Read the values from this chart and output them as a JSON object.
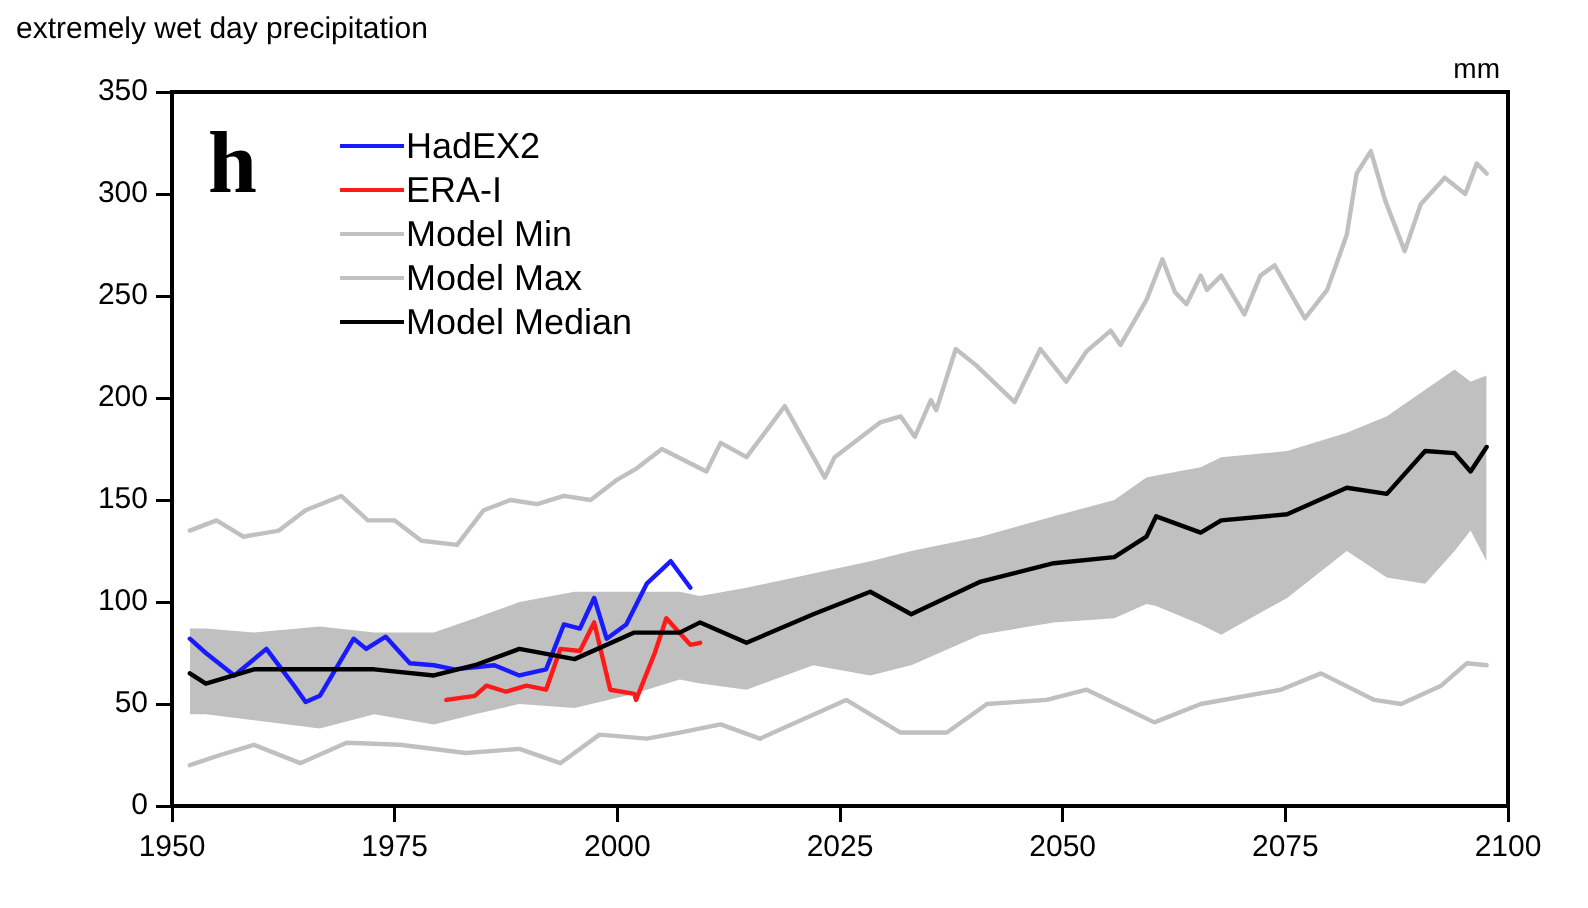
{
  "chart_data": {
    "type": "line",
    "title": "extremely wet day precipitation",
    "ylabel": "mm",
    "annotations": [
      "h"
    ],
    "xlim": [
      1950,
      2100
    ],
    "xticks": [
      1950,
      1975,
      2000,
      2025,
      2050,
      2075,
      2100
    ],
    "ylim": [
      0,
      350
    ],
    "yticks": [
      0,
      50,
      100,
      150,
      200,
      250,
      300,
      350
    ],
    "grid": false,
    "legend": "top left",
    "marker": "none",
    "line_style": "solid",
    "series": [
      {
        "name": "HadEX2",
        "color": "#1a1aff",
        "x": [
          1952,
          1953.8,
          1957,
          1960.6,
          1963.7,
          1965,
          1966.6,
          1970.4,
          1971.8,
          1974,
          1976.7,
          1979.4,
          1981.7,
          1986.2,
          1989,
          1992,
          1994,
          1995.8,
          1997.4,
          1998.8,
          2001,
          2003.3,
          2006,
          2008.2
        ],
        "values": [
          82,
          75,
          64,
          77,
          59,
          51,
          54,
          82,
          77,
          83,
          70,
          69,
          67,
          69,
          64,
          67,
          89,
          87,
          102,
          82,
          89,
          109,
          120,
          107
        ]
      },
      {
        "name": "ERA-I",
        "color": "#ff1a1a",
        "x": [
          1980.8,
          1984,
          1985.3,
          1987.5,
          1989.8,
          1992,
          1993.6,
          1995.8,
          1997.4,
          1999.2,
          2001.9,
          2002.1,
          2004.2,
          2005.5,
          2008.2,
          2009.3
        ],
        "values": [
          52,
          54,
          59,
          56,
          59,
          57,
          77,
          76,
          90,
          57,
          55,
          52,
          75,
          92,
          79,
          80
        ]
      },
      {
        "name": "Model Min",
        "color": "#c0c0c0",
        "x": [
          1952,
          1955.4,
          1959.2,
          1964.4,
          1969.6,
          1975.6,
          1983,
          1989,
          1993.6,
          1998,
          2003.3,
          2007,
          2011.6,
          2016,
          2025.7,
          2031.8,
          2037,
          2041.5,
          2048.2,
          2052.7,
          2060.3,
          2065.5,
          2074.5,
          2079,
          2085,
          2088,
          2092.5,
          2095.4,
          2097.6
        ],
        "values": [
          20,
          25,
          30,
          21,
          31,
          30,
          26,
          28,
          21,
          35,
          33,
          36,
          40,
          33,
          52,
          36,
          36,
          50,
          52,
          57,
          41,
          50,
          57,
          65,
          52,
          50,
          59,
          70,
          69
        ]
      },
      {
        "name": "Model Max",
        "color": "#c0c0c0",
        "x": [
          1952,
          1955,
          1958,
          1962,
          1965,
          1969,
          1972,
          1975,
          1978,
          1982,
          1985,
          1988,
          1991,
          1994,
          1997,
          2000,
          2002,
          2005,
          2010,
          2011.6,
          2014.5,
          2018.8,
          2023.3,
          2024.4,
          2029.5,
          2031.8,
          2033.4,
          2035.2,
          2035.8,
          2038,
          2040.3,
          2044.6,
          2047.5,
          2050.4,
          2052.7,
          2055.4,
          2056.5,
          2059.4,
          2061.2,
          2062.6,
          2063.9,
          2065.5,
          2066.2,
          2067.8,
          2070.4,
          2072.2,
          2073.8,
          2077.2,
          2079.7,
          2081.9,
          2083,
          2084.6,
          2086.2,
          2088.4,
          2090.2,
          2092.9,
          2095.2,
          2096.5,
          2097.6
        ],
        "values": [
          135,
          140,
          132,
          135,
          145,
          152,
          140,
          140,
          130,
          128,
          145,
          150,
          148,
          152,
          150,
          160,
          165,
          175,
          164,
          178,
          171,
          196,
          161,
          171,
          188,
          191,
          181,
          199,
          194,
          224,
          216,
          198,
          224,
          208,
          223,
          233,
          226,
          248,
          268,
          252,
          246,
          260,
          253,
          260,
          241,
          260,
          265,
          239,
          253,
          280,
          310,
          321,
          297,
          272,
          295,
          308,
          300,
          315,
          310
        ]
      },
      {
        "name": "Model Median",
        "color": "#000000",
        "x": [
          1952,
          1953.8,
          1959.2,
          1966.6,
          1972.7,
          1979.4,
          1984,
          1989,
          1995.2,
          2001.9,
          2007,
          2009.3,
          2014.5,
          2022,
          2028.4,
          2033,
          2040.8,
          2049,
          2055.8,
          2059.4,
          2060.5,
          2065.5,
          2067.8,
          2075.2,
          2081.9,
          2086.4,
          2090.7,
          2094,
          2095.8,
          2097.6
        ],
        "values": [
          65,
          60,
          67,
          67,
          67,
          64,
          69,
          77,
          72,
          85,
          85,
          90,
          80,
          94,
          105,
          94,
          110,
          119,
          122,
          132,
          142,
          134,
          140,
          143,
          156,
          153,
          174,
          173,
          164,
          176
        ],
        "lower": [
          45,
          45,
          42,
          38,
          45,
          40,
          45,
          50,
          48,
          55,
          62,
          60,
          57,
          69,
          64,
          69,
          84,
          90,
          92,
          99,
          98,
          89,
          84,
          102,
          125,
          112,
          109,
          125,
          135,
          120
        ],
        "upper": [
          87,
          87,
          85,
          88,
          85,
          85,
          92,
          100,
          105,
          105,
          105,
          103,
          107,
          114,
          120,
          125,
          132,
          142,
          150,
          161,
          162,
          166,
          171,
          174,
          183,
          191,
          204,
          214,
          208,
          211
        ]
      }
    ]
  }
}
